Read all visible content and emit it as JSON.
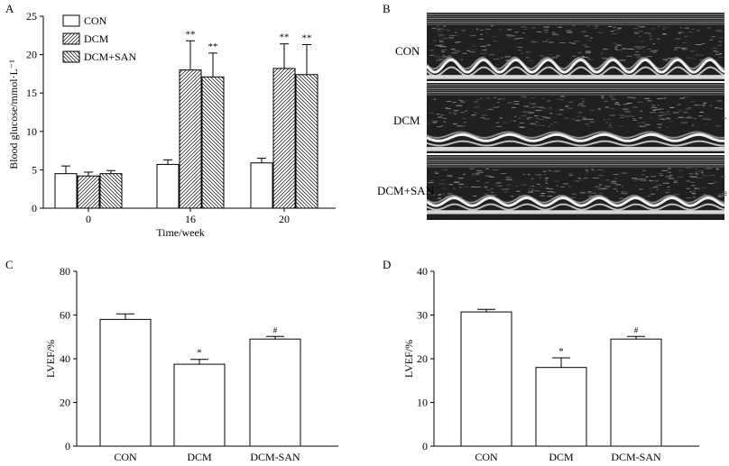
{
  "panels": {
    "a": "A",
    "b": "B",
    "c": "C",
    "d": "D"
  },
  "echo_labels": [
    "CON",
    "DCM",
    "DCM+SAN"
  ],
  "chart_data": [
    {
      "type": "bar",
      "panel": "A",
      "xlabel": "Time/week",
      "ylabel": "Blood glucose/mmol·L⁻¹",
      "ylim": [
        0,
        25
      ],
      "yticks": [
        0,
        5,
        10,
        15,
        20,
        25
      ],
      "categories": [
        "0",
        "16",
        "20"
      ],
      "legend_position": "top-left",
      "series": [
        {
          "name": "CON",
          "fill": "plain",
          "values": [
            4.5,
            5.7,
            5.9
          ],
          "errors": [
            1.0,
            0.6,
            0.6
          ],
          "annotations": [
            "",
            "",
            ""
          ]
        },
        {
          "name": "DCM",
          "fill": "hatch-right",
          "values": [
            4.2,
            18.0,
            18.2
          ],
          "errors": [
            0.5,
            3.8,
            3.2
          ],
          "annotations": [
            "",
            "**",
            "**"
          ]
        },
        {
          "name": "DCM+SAN",
          "fill": "hatch-left",
          "values": [
            4.5,
            17.1,
            17.4
          ],
          "errors": [
            0.4,
            3.1,
            3.9
          ],
          "annotations": [
            "",
            "**",
            "**"
          ]
        }
      ]
    },
    {
      "type": "bar",
      "panel": "C",
      "ylabel": "LVEF/%",
      "ylim": [
        0,
        80
      ],
      "yticks": [
        0,
        20,
        40,
        60,
        80
      ],
      "categories": [
        "CON",
        "DCM",
        "DCM-SAN"
      ],
      "values": [
        58,
        37.5,
        49
      ],
      "errors": [
        2.5,
        2.2,
        1.2
      ],
      "annotations": [
        "",
        "*",
        "#"
      ]
    },
    {
      "type": "bar",
      "panel": "D",
      "ylabel": "LVEF/%",
      "ylim": [
        0,
        40
      ],
      "yticks": [
        0,
        10,
        20,
        30,
        40
      ],
      "categories": [
        "CON",
        "DCM",
        "DCM-SAN"
      ],
      "values": [
        30.7,
        18.0,
        24.5
      ],
      "errors": [
        0.6,
        2.2,
        0.6
      ],
      "annotations": [
        "",
        "*",
        "#"
      ]
    }
  ]
}
